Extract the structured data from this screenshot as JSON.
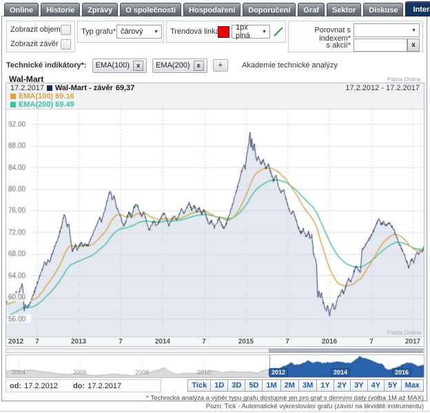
{
  "tabs": {
    "items": [
      "Online",
      "Historie",
      "Zprávy",
      "O společnosti",
      "Hospodaření",
      "Doporučení",
      "Graf",
      "Sektor",
      "Diskuse",
      "Interaktivní graf"
    ],
    "active_index": 9
  },
  "controls": {
    "show_volume_label": "Zobrazit objem",
    "show_close_label": "Zobrazit závěr",
    "chart_type_label": "Typ grafu*",
    "chart_type_value": "čárový",
    "trendline_label": "Trendová linka",
    "trendline_color": "#ee0000",
    "trendline_style_value": "1px plná",
    "compare_index_label": "Porovnat s indexem*",
    "compare_stock_label": "s akcií*",
    "compare_stock_value": "",
    "clear_button_label": "x"
  },
  "indicators": {
    "label": "Technické indikátory*:",
    "chips": [
      "EMA(100)",
      "EMA(200)"
    ],
    "remove_label": "x",
    "add_button_label": "+",
    "academy_link": "Akademie technické analýzy"
  },
  "chart": {
    "title": "Wal-Mart",
    "brand": "Patria Online",
    "watermark": "Patria Online",
    "legend": {
      "date": "17.2.2017",
      "series_label": "Wal-Mart - závěr",
      "series_value": "69,37",
      "range": "17.2.2012 - 17.2.2017",
      "ema100_label": "EMA(100) 69.16",
      "ema200_label": "EMA(200) 69.49",
      "price_square_color": "#16294d",
      "ema100_color": "#dfa23d",
      "ema200_color": "#35c3a2"
    }
  },
  "chart_data": {
    "type": "line",
    "title": "Wal-Mart",
    "ylabel": "",
    "xlabel": "",
    "y_ticks": [
      56,
      60,
      64,
      68,
      72,
      76,
      80,
      84,
      88,
      92
    ],
    "ylim": [
      52.7,
      94.7
    ],
    "x_ticks": [
      {
        "t": 0.0,
        "label": "2012"
      },
      {
        "t": 0.37,
        "label": "7"
      },
      {
        "t": 0.87,
        "label": "2013"
      },
      {
        "t": 1.37,
        "label": "7"
      },
      {
        "t": 1.87,
        "label": "2014"
      },
      {
        "t": 2.37,
        "label": "7"
      },
      {
        "t": 2.87,
        "label": "2015"
      },
      {
        "t": 3.37,
        "label": "7"
      },
      {
        "t": 3.87,
        "label": "2016"
      },
      {
        "t": 4.37,
        "label": "7"
      },
      {
        "t": 4.87,
        "label": "2017"
      }
    ],
    "grid": true,
    "legend_position": "top",
    "series": [
      {
        "name": "Wal-Mart - závěr",
        "last_value": 69.37,
        "color": "#24395d",
        "fill": "rgba(205,213,228,0.55)",
        "points": [
          [
            0.0,
            58.8
          ],
          [
            0.02,
            59.8
          ],
          [
            0.04,
            60.4
          ],
          [
            0.06,
            59.6
          ],
          [
            0.08,
            60.6
          ],
          [
            0.1,
            60.0
          ],
          [
            0.12,
            61.0
          ],
          [
            0.14,
            60.3
          ],
          [
            0.16,
            61.2
          ],
          [
            0.18,
            61.9
          ],
          [
            0.19,
            62.5
          ],
          [
            0.2,
            61.5
          ],
          [
            0.215,
            57.6
          ],
          [
            0.23,
            58.6
          ],
          [
            0.25,
            57.9
          ],
          [
            0.27,
            58.5
          ],
          [
            0.29,
            59.1
          ],
          [
            0.32,
            60.2
          ],
          [
            0.35,
            61.6
          ],
          [
            0.38,
            63.0
          ],
          [
            0.41,
            64.3
          ],
          [
            0.44,
            65.4
          ],
          [
            0.46,
            66.6
          ],
          [
            0.48,
            66.0
          ],
          [
            0.5,
            67.0
          ],
          [
            0.52,
            66.4
          ],
          [
            0.55,
            68.0
          ],
          [
            0.57,
            68.9
          ],
          [
            0.6,
            70.0
          ],
          [
            0.62,
            70.9
          ],
          [
            0.64,
            72.0
          ],
          [
            0.66,
            73.0
          ],
          [
            0.68,
            74.2
          ],
          [
            0.695,
            75.4
          ],
          [
            0.71,
            74.6
          ],
          [
            0.73,
            73.0
          ],
          [
            0.75,
            73.6
          ],
          [
            0.77,
            70.8
          ],
          [
            0.79,
            68.6
          ],
          [
            0.81,
            68.9
          ],
          [
            0.83,
            69.9
          ],
          [
            0.85,
            68.6
          ],
          [
            0.87,
            69.3
          ],
          [
            0.9,
            70.2
          ],
          [
            0.92,
            69.4
          ],
          [
            0.95,
            69.9
          ],
          [
            0.98,
            69.5
          ],
          [
            1.0,
            70.3
          ],
          [
            1.03,
            71.4
          ],
          [
            1.06,
            72.6
          ],
          [
            1.09,
            73.6
          ],
          [
            1.12,
            74.7
          ],
          [
            1.14,
            73.9
          ],
          [
            1.17,
            75.5
          ],
          [
            1.2,
            77.3
          ],
          [
            1.23,
            79.0
          ],
          [
            1.25,
            79.6
          ],
          [
            1.27,
            78.0
          ],
          [
            1.29,
            78.7
          ],
          [
            1.32,
            76.8
          ],
          [
            1.35,
            75.6
          ],
          [
            1.38,
            74.4
          ],
          [
            1.41,
            73.1
          ],
          [
            1.44,
            74.4
          ],
          [
            1.47,
            75.7
          ],
          [
            1.5,
            74.8
          ],
          [
            1.53,
            76.5
          ],
          [
            1.56,
            77.4
          ],
          [
            1.59,
            76.1
          ],
          [
            1.62,
            74.9
          ],
          [
            1.65,
            75.7
          ],
          [
            1.68,
            73.9
          ],
          [
            1.71,
            72.3
          ],
          [
            1.74,
            73.3
          ],
          [
            1.77,
            74.2
          ],
          [
            1.8,
            73.0
          ],
          [
            1.83,
            74.0
          ],
          [
            1.86,
            74.9
          ],
          [
            1.89,
            75.6
          ],
          [
            1.92,
            74.4
          ],
          [
            1.95,
            73.3
          ],
          [
            1.98,
            74.3
          ],
          [
            2.01,
            75.1
          ],
          [
            2.04,
            74.2
          ],
          [
            2.07,
            75.3
          ],
          [
            2.1,
            76.4
          ],
          [
            2.13,
            75.4
          ],
          [
            2.16,
            76.6
          ],
          [
            2.19,
            77.4
          ],
          [
            2.22,
            76.2
          ],
          [
            2.25,
            77.0
          ],
          [
            2.28,
            75.8
          ],
          [
            2.31,
            76.6
          ],
          [
            2.34,
            75.4
          ],
          [
            2.37,
            76.2
          ],
          [
            2.4,
            74.8
          ],
          [
            2.43,
            73.4
          ],
          [
            2.46,
            74.3
          ],
          [
            2.49,
            72.9
          ],
          [
            2.52,
            73.8
          ],
          [
            2.55,
            74.6
          ],
          [
            2.58,
            73.4
          ],
          [
            2.61,
            72.6
          ],
          [
            2.64,
            73.8
          ],
          [
            2.67,
            75.2
          ],
          [
            2.7,
            76.6
          ],
          [
            2.73,
            78.2
          ],
          [
            2.76,
            79.8
          ],
          [
            2.79,
            81.6
          ],
          [
            2.82,
            83.4
          ],
          [
            2.845,
            84.6
          ],
          [
            2.86,
            83.8
          ],
          [
            2.875,
            85.6
          ],
          [
            2.89,
            87.2
          ],
          [
            2.905,
            88.6
          ],
          [
            2.92,
            90.3
          ],
          [
            2.93,
            87.6
          ],
          [
            2.94,
            89.2
          ],
          [
            2.955,
            87.2
          ],
          [
            2.97,
            88.4
          ],
          [
            2.985,
            86.6
          ],
          [
            3.0,
            85.2
          ],
          [
            3.02,
            86.0
          ],
          [
            3.05,
            84.6
          ],
          [
            3.08,
            85.4
          ],
          [
            3.11,
            83.8
          ],
          [
            3.14,
            84.6
          ],
          [
            3.17,
            83.0
          ],
          [
            3.2,
            81.6
          ],
          [
            3.23,
            82.4
          ],
          [
            3.26,
            80.6
          ],
          [
            3.29,
            79.2
          ],
          [
            3.32,
            80.0
          ],
          [
            3.35,
            78.2
          ],
          [
            3.38,
            76.6
          ],
          [
            3.41,
            75.2
          ],
          [
            3.44,
            76.0
          ],
          [
            3.47,
            74.2
          ],
          [
            3.5,
            72.8
          ],
          [
            3.53,
            71.8
          ],
          [
            3.56,
            72.6
          ],
          [
            3.59,
            71.2
          ],
          [
            3.62,
            72.0
          ],
          [
            3.64,
            70.8
          ],
          [
            3.66,
            71.4
          ],
          [
            3.68,
            68.2
          ],
          [
            3.7,
            67.0
          ],
          [
            3.715,
            66.4
          ],
          [
            3.73,
            60.0
          ],
          [
            3.745,
            61.4
          ],
          [
            3.76,
            59.8
          ],
          [
            3.775,
            61.0
          ],
          [
            3.79,
            59.4
          ],
          [
            3.81,
            58.4
          ],
          [
            3.83,
            57.3
          ],
          [
            3.85,
            58.7
          ],
          [
            3.87,
            56.4
          ],
          [
            3.89,
            57.9
          ],
          [
            3.91,
            58.9
          ],
          [
            3.93,
            57.7
          ],
          [
            3.95,
            58.6
          ],
          [
            3.97,
            59.9
          ],
          [
            4.0,
            60.5
          ],
          [
            4.02,
            61.4
          ],
          [
            4.04,
            60.7
          ],
          [
            4.07,
            62.2
          ],
          [
            4.1,
            63.4
          ],
          [
            4.13,
            62.8
          ],
          [
            4.16,
            64.6
          ],
          [
            4.19,
            65.6
          ],
          [
            4.22,
            64.9
          ],
          [
            4.24,
            64.4
          ],
          [
            4.26,
            68.6
          ],
          [
            4.29,
            69.3
          ],
          [
            4.32,
            70.1
          ],
          [
            4.35,
            70.8
          ],
          [
            4.38,
            71.7
          ],
          [
            4.41,
            72.6
          ],
          [
            4.44,
            73.8
          ],
          [
            4.465,
            74.3
          ],
          [
            4.49,
            73.4
          ],
          [
            4.52,
            73.9
          ],
          [
            4.55,
            73.1
          ],
          [
            4.58,
            73.8
          ],
          [
            4.61,
            73.2
          ],
          [
            4.64,
            72.5
          ],
          [
            4.67,
            71.3
          ],
          [
            4.7,
            70.1
          ],
          [
            4.73,
            69.1
          ],
          [
            4.76,
            68.1
          ],
          [
            4.79,
            66.9
          ],
          [
            4.82,
            65.5
          ],
          [
            4.84,
            66.5
          ],
          [
            4.86,
            67.1
          ],
          [
            4.88,
            66.3
          ],
          [
            4.9,
            67.6
          ],
          [
            4.92,
            68.4
          ],
          [
            4.94,
            67.9
          ],
          [
            4.96,
            68.6
          ],
          [
            4.98,
            68.3
          ],
          [
            5.0,
            69.37
          ]
        ]
      },
      {
        "name": "EMA(100)",
        "last_value": 69.16,
        "color": "#dca84e",
        "derived": "ema",
        "period": 100,
        "seed": 58.6
      },
      {
        "name": "EMA(200)",
        "last_value": 69.49,
        "color": "#4fc3a8",
        "derived": "ema",
        "period": 200,
        "seed": 56.3
      }
    ],
    "navigator": {
      "x_range_years": [
        2003.6,
        2017.13
      ],
      "selected_from_year": 2012.13,
      "ylim": [
        42,
        91
      ],
      "gray_labels": [
        2004,
        2006,
        2008,
        2010
      ],
      "selected_labels": [
        2012,
        2014,
        2016
      ],
      "unselected_fill": "#d9dadc",
      "selected_fill": "#2a62a8",
      "points": [
        [
          2003.6,
          55
        ],
        [
          2003.9,
          57
        ],
        [
          2004.1,
          55
        ],
        [
          2004.4,
          58
        ],
        [
          2004.7,
          54
        ],
        [
          2005.0,
          52
        ],
        [
          2005.3,
          48
        ],
        [
          2005.6,
          47
        ],
        [
          2005.9,
          49
        ],
        [
          2006.2,
          46
        ],
        [
          2006.5,
          44.5
        ],
        [
          2006.8,
          46
        ],
        [
          2007.1,
          48
        ],
        [
          2007.4,
          46
        ],
        [
          2007.7,
          44
        ],
        [
          2008.0,
          47
        ],
        [
          2008.3,
          53
        ],
        [
          2008.55,
          58
        ],
        [
          2008.7,
          63
        ],
        [
          2008.85,
          56
        ],
        [
          2009.0,
          50
        ],
        [
          2009.15,
          47
        ],
        [
          2009.4,
          50
        ],
        [
          2009.7,
          49
        ],
        [
          2010.0,
          54
        ],
        [
          2010.3,
          56
        ],
        [
          2010.6,
          51
        ],
        [
          2010.9,
          54
        ],
        [
          2011.2,
          52
        ],
        [
          2011.5,
          53
        ],
        [
          2011.75,
          50
        ],
        [
          2011.95,
          57
        ],
        [
          2012.13,
          58.8
        ]
      ]
    }
  },
  "range_bar": {
    "od_label": "od:",
    "od_value": "17.2.2012",
    "do_label": "do:",
    "do_value": "17.2.2017",
    "buttons": [
      "Tick",
      "1D",
      "3D",
      "5D",
      "1M",
      "2M",
      "3M",
      "1Y",
      "2Y",
      "3Y",
      "4Y",
      "5Y",
      "Max"
    ]
  },
  "footnotes": {
    "line1": "* Technická analýza a výběr typu grafu dostupné jen pro graf s denními daty (volba 1M až MAX)",
    "line2": "Pozn: Tick - Automatické vykreslování grafu (závisí na likviditě instrumentu)"
  }
}
